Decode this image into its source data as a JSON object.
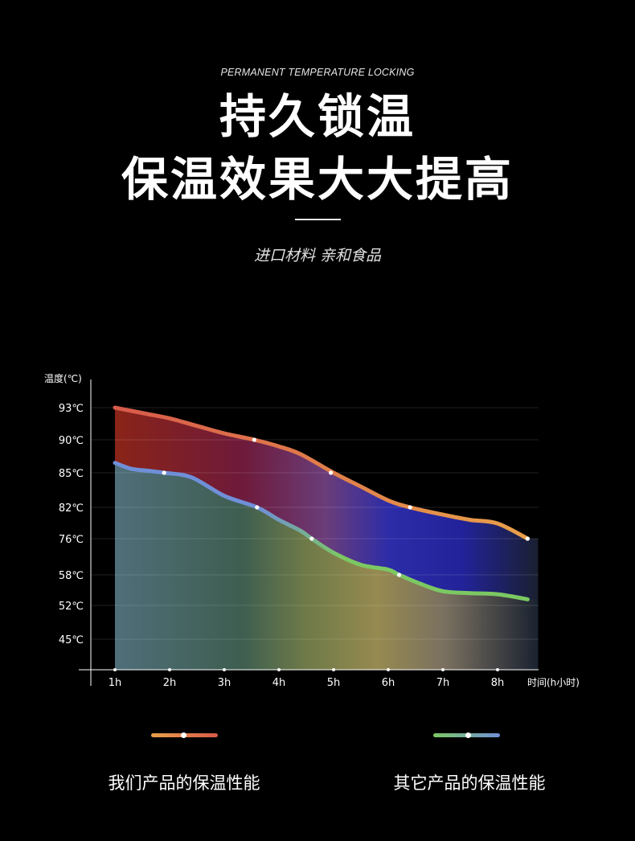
{
  "header": {
    "eyebrow": "PERMANENT TEMPERATURE LOCKING",
    "title_line1": "持久锁温",
    "title_line2": "保温效果大大提高",
    "subtitle": "进口材料 亲和食品"
  },
  "legend": {
    "ours_label": "我们产品的保温性能",
    "theirs_label": "其它产品的保温性能",
    "ours_colors": [
      "#e8a04a",
      "#d85a4a"
    ],
    "theirs_colors": [
      "#7cc862",
      "#6f8fd8"
    ]
  },
  "chart_data": {
    "type": "area",
    "ylabel": "温度(℃)",
    "xlabel": "时间(h小时)",
    "y_ticks": [
      "93℃",
      "90℃",
      "85℃",
      "82℃",
      "76℃",
      "58℃",
      "52℃",
      "45℃"
    ],
    "x_ticks": [
      "1h",
      "2h",
      "3h",
      "4h",
      "5h",
      "6h",
      "7h",
      "8h"
    ],
    "grid": true,
    "series": [
      {
        "key": "ours",
        "color_start": "#d85a4a",
        "color_end": "#e8a04a",
        "x": [
          1,
          1.3,
          1.6,
          2,
          2.5,
          3,
          3.55,
          4,
          4.4,
          5,
          5.5,
          6,
          6.4,
          7,
          7.5,
          8,
          8.55
        ],
        "y": [
          93,
          92.7,
          92.4,
          92,
          91.3,
          90.6,
          90,
          89,
          87.8,
          85,
          83.8,
          82.6,
          82,
          80.6,
          79.6,
          78.9,
          76
        ]
      },
      {
        "key": "theirs",
        "color_start": "#6f8fd8",
        "color_end": "#7cc862",
        "x": [
          1,
          1.3,
          1.6,
          1.9,
          2.4,
          3,
          3.6,
          4,
          4.4,
          4.6,
          5,
          5.5,
          6,
          6.2,
          6.6,
          7,
          7.5,
          8,
          8.55
        ],
        "y": [
          86.5,
          85.6,
          85.3,
          85,
          84.6,
          83,
          82,
          79.6,
          77.5,
          76,
          69,
          63,
          60.6,
          58,
          56.2,
          54.8,
          54.4,
          54.2,
          53.2
        ]
      }
    ],
    "markers": [
      {
        "series": "ours",
        "x": 3.55,
        "y": 90
      },
      {
        "series": "ours",
        "x": 4.95,
        "y": 85
      },
      {
        "series": "ours",
        "x": 6.4,
        "y": 82
      },
      {
        "series": "ours",
        "x": 8.55,
        "y": 76
      },
      {
        "series": "theirs",
        "x": 1.9,
        "y": 85
      },
      {
        "series": "theirs",
        "x": 3.6,
        "y": 82
      },
      {
        "series": "theirs",
        "x": 4.6,
        "y": 76
      },
      {
        "series": "theirs",
        "x": 6.2,
        "y": 58
      }
    ]
  }
}
